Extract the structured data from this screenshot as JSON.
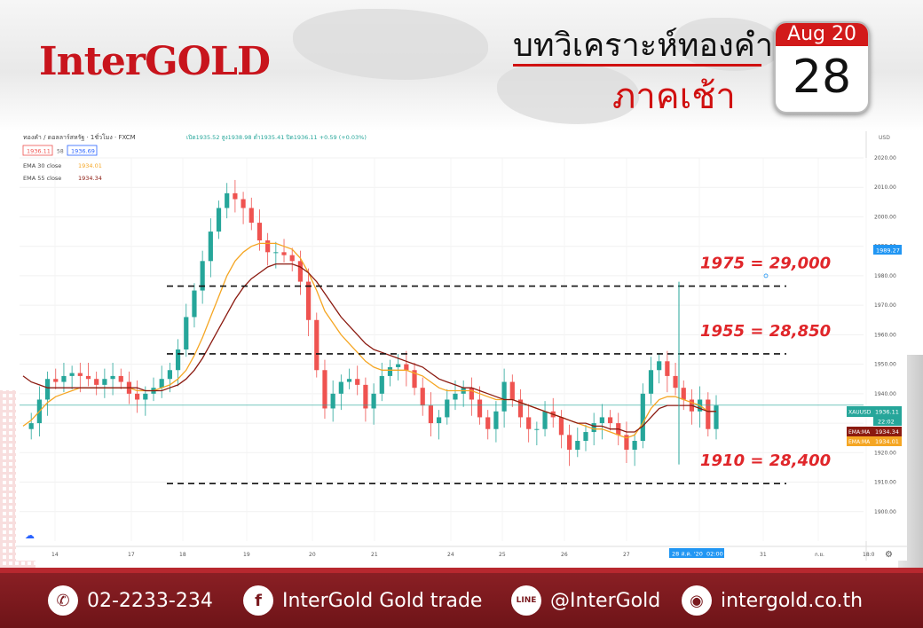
{
  "header": {
    "logo": "InterGOLD",
    "title_line1": "บทวิเคราะห์ทองคำ",
    "title_line2": "ภาคเช้า",
    "calendar_month": "Aug 20",
    "calendar_day": "28"
  },
  "chart_info": {
    "symbol_line": "ทองคำ / ดอลลาร์สหรัฐ · 1ชั่วโมง · FXCM",
    "ohlc_line": "เปิด1935.52 สูง1938.98 ต่ำ1935.41 ปิด1936.11 +0.59 (+0.03%)",
    "bid": "1936.11",
    "spread": "58",
    "ask": "1936.69",
    "ema30_label": "EMA 30 close",
    "ema30_value": "1934.01",
    "ema55_label": "EMA 55 close",
    "ema55_value": "1934.34",
    "currency": "USD",
    "price_tag_1": "1989.27",
    "price_tag_main_label": "XAUUSD",
    "price_tag_main": "1936.11",
    "price_tag_time": "22:02",
    "price_tag_ema55_label": "EMA:MA",
    "price_tag_ema55": "1934.34",
    "price_tag_ema30_label": "EMA:MA",
    "price_tag_ema30": "1934.01",
    "cursor_date": "28 ส.ค. '20",
    "cursor_time": "02:00"
  },
  "chart_data": {
    "type": "line",
    "title": "",
    "xlabel": "",
    "ylabel": "",
    "ylim": [
      1890,
      2020
    ],
    "yticks": [
      2020,
      2010,
      2000,
      1990,
      1980,
      1970,
      1960,
      1950,
      1940,
      1930,
      1920,
      1910,
      1900
    ],
    "xticks": [
      "14",
      "17",
      "18",
      "19",
      "20",
      "21",
      "24",
      "25",
      "26",
      "27",
      "28 ส.ค. '20",
      "31",
      "ก.ย.",
      "18:0"
    ],
    "levels": [
      {
        "label": "1975 = 29,000",
        "price": 1976.5
      },
      {
        "label": "1955 = 28,850",
        "price": 1953.5
      },
      {
        "label": "1910 = 28,400",
        "price": 1909.5
      }
    ],
    "series": [
      {
        "name": "Price",
        "color": "#26a69a",
        "values": [
          1928,
          1930,
          1938,
          1945,
          1944,
          1946,
          1947,
          1946,
          1945,
          1943,
          1945,
          1946,
          1944,
          1940,
          1938,
          1940,
          1942,
          1945,
          1948,
          1955,
          1966,
          1975,
          1985,
          1995,
          2003,
          2008,
          2006,
          2003,
          1998,
          1992,
          1988,
          1988,
          1987,
          1985,
          1978,
          1965,
          1948,
          1935,
          1940,
          1944,
          1945,
          1943,
          1935,
          1940,
          1946,
          1949,
          1950,
          1948,
          1942,
          1936,
          1930,
          1932,
          1938,
          1940,
          1942,
          1938,
          1932,
          1928,
          1934,
          1944,
          1938,
          1932,
          1928,
          1928,
          1934,
          1932,
          1926,
          1921,
          1924,
          1927,
          1930,
          1932,
          1930,
          1926,
          1921,
          1924,
          1940,
          1948,
          1951,
          1946,
          1942,
          1938,
          1934,
          1938,
          1928,
          1936
        ]
      },
      {
        "name": "EMA 30 close",
        "color": "#f5a623",
        "values": [
          1929,
          1931,
          1934,
          1937,
          1939,
          1940,
          1941,
          1942,
          1942,
          1942,
          1942,
          1942,
          1942,
          1942,
          1941,
          1941,
          1941,
          1942,
          1943,
          1945,
          1948,
          1953,
          1959,
          1966,
          1973,
          1980,
          1985,
          1988,
          1990,
          1991,
          1991,
          1991,
          1990,
          1989,
          1986,
          1981,
          1975,
          1968,
          1964,
          1960,
          1957,
          1954,
          1951,
          1949,
          1948,
          1948,
          1948,
          1948,
          1947,
          1946,
          1944,
          1942,
          1941,
          1941,
          1941,
          1941,
          1940,
          1939,
          1938,
          1938,
          1938,
          1937,
          1936,
          1935,
          1934,
          1933,
          1932,
          1931,
          1930,
          1929,
          1928,
          1928,
          1927,
          1926,
          1925,
          1926,
          1930,
          1935,
          1938,
          1939,
          1939,
          1938,
          1937,
          1936,
          1934,
          1934
        ]
      },
      {
        "name": "EMA 55 close",
        "color": "#8b1a10",
        "values": [
          1946,
          1944,
          1943,
          1942,
          1942,
          1942,
          1942,
          1942,
          1942,
          1942,
          1942,
          1942,
          1942,
          1942,
          1942,
          1941,
          1941,
          1941,
          1942,
          1943,
          1945,
          1948,
          1952,
          1957,
          1962,
          1967,
          1972,
          1976,
          1979,
          1981,
          1983,
          1984,
          1984,
          1984,
          1983,
          1981,
          1978,
          1974,
          1970,
          1966,
          1963,
          1960,
          1957,
          1955,
          1954,
          1953,
          1952,
          1951,
          1950,
          1949,
          1947,
          1945,
          1944,
          1943,
          1942,
          1942,
          1941,
          1940,
          1939,
          1938,
          1938,
          1937,
          1936,
          1935,
          1934,
          1933,
          1932,
          1931,
          1930,
          1930,
          1929,
          1929,
          1928,
          1928,
          1927,
          1927,
          1929,
          1932,
          1935,
          1936,
          1936,
          1936,
          1936,
          1935,
          1934,
          1934
        ]
      }
    ]
  },
  "footer": {
    "phone": "02-2233-234",
    "facebook": "InterGold Gold trade",
    "line": "@InterGold",
    "website": "intergold.co.th",
    "phone_icon_glyph": "✆",
    "facebook_icon_glyph": "f",
    "line_icon_glyph": "LINE",
    "web_icon_glyph": "◉"
  }
}
